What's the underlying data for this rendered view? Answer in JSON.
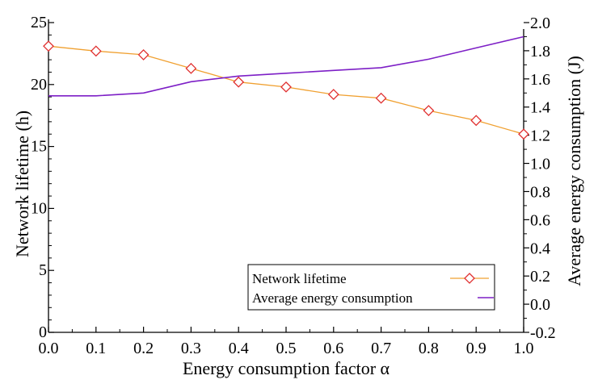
{
  "chart_data": {
    "type": "line",
    "title": "",
    "xlabel": "Energy consumption factor α",
    "ylabel_left": "Network lifetime (h)",
    "ylabel_right": "Average energy consumption (J)",
    "x": [
      0.0,
      0.1,
      0.2,
      0.3,
      0.4,
      0.5,
      0.6,
      0.7,
      0.8,
      0.9,
      1.0
    ],
    "x_tick_labels": [
      "0.0",
      "0.1",
      "0.2",
      "0.3",
      "0.4",
      "0.5",
      "0.6",
      "0.7",
      "0.8",
      "0.9",
      "1.0"
    ],
    "xlim": [
      0.0,
      1.0
    ],
    "ylim_left": [
      0,
      25
    ],
    "y_left_tick_labels": [
      "0",
      "5",
      "10",
      "15",
      "20",
      "25"
    ],
    "y_left_ticks": [
      0,
      5,
      10,
      15,
      20,
      25
    ],
    "ylim_right": [
      -0.2,
      2.0
    ],
    "y_right_tick_labels": [
      "-0.2",
      "0.0",
      "0.2",
      "0.4",
      "0.6",
      "0.8",
      "1.0",
      "1.2",
      "1.4",
      "1.6",
      "1.8",
      "2.0"
    ],
    "y_right_ticks": [
      -0.2,
      0.0,
      0.2,
      0.4,
      0.6,
      0.8,
      1.0,
      1.2,
      1.4,
      1.6,
      1.8,
      2.0
    ],
    "series": [
      {
        "name": "Network lifetime",
        "axis": "left",
        "color": "#f0a030",
        "marker": "diamond",
        "marker_color": "#e03030",
        "values": [
          23.1,
          22.7,
          22.4,
          21.3,
          20.2,
          19.8,
          19.2,
          18.9,
          17.9,
          17.1,
          16.0
        ]
      },
      {
        "name": "Average energy consumption",
        "axis": "right",
        "color": "#7d1fc6",
        "marker": "none",
        "values": [
          1.48,
          1.48,
          1.5,
          1.58,
          1.62,
          1.64,
          1.66,
          1.68,
          1.74,
          1.82,
          1.9
        ]
      }
    ],
    "legend": {
      "position": "bottom-right",
      "entries": [
        "Network lifetime",
        "Average energy consumption"
      ]
    },
    "grid": false
  }
}
